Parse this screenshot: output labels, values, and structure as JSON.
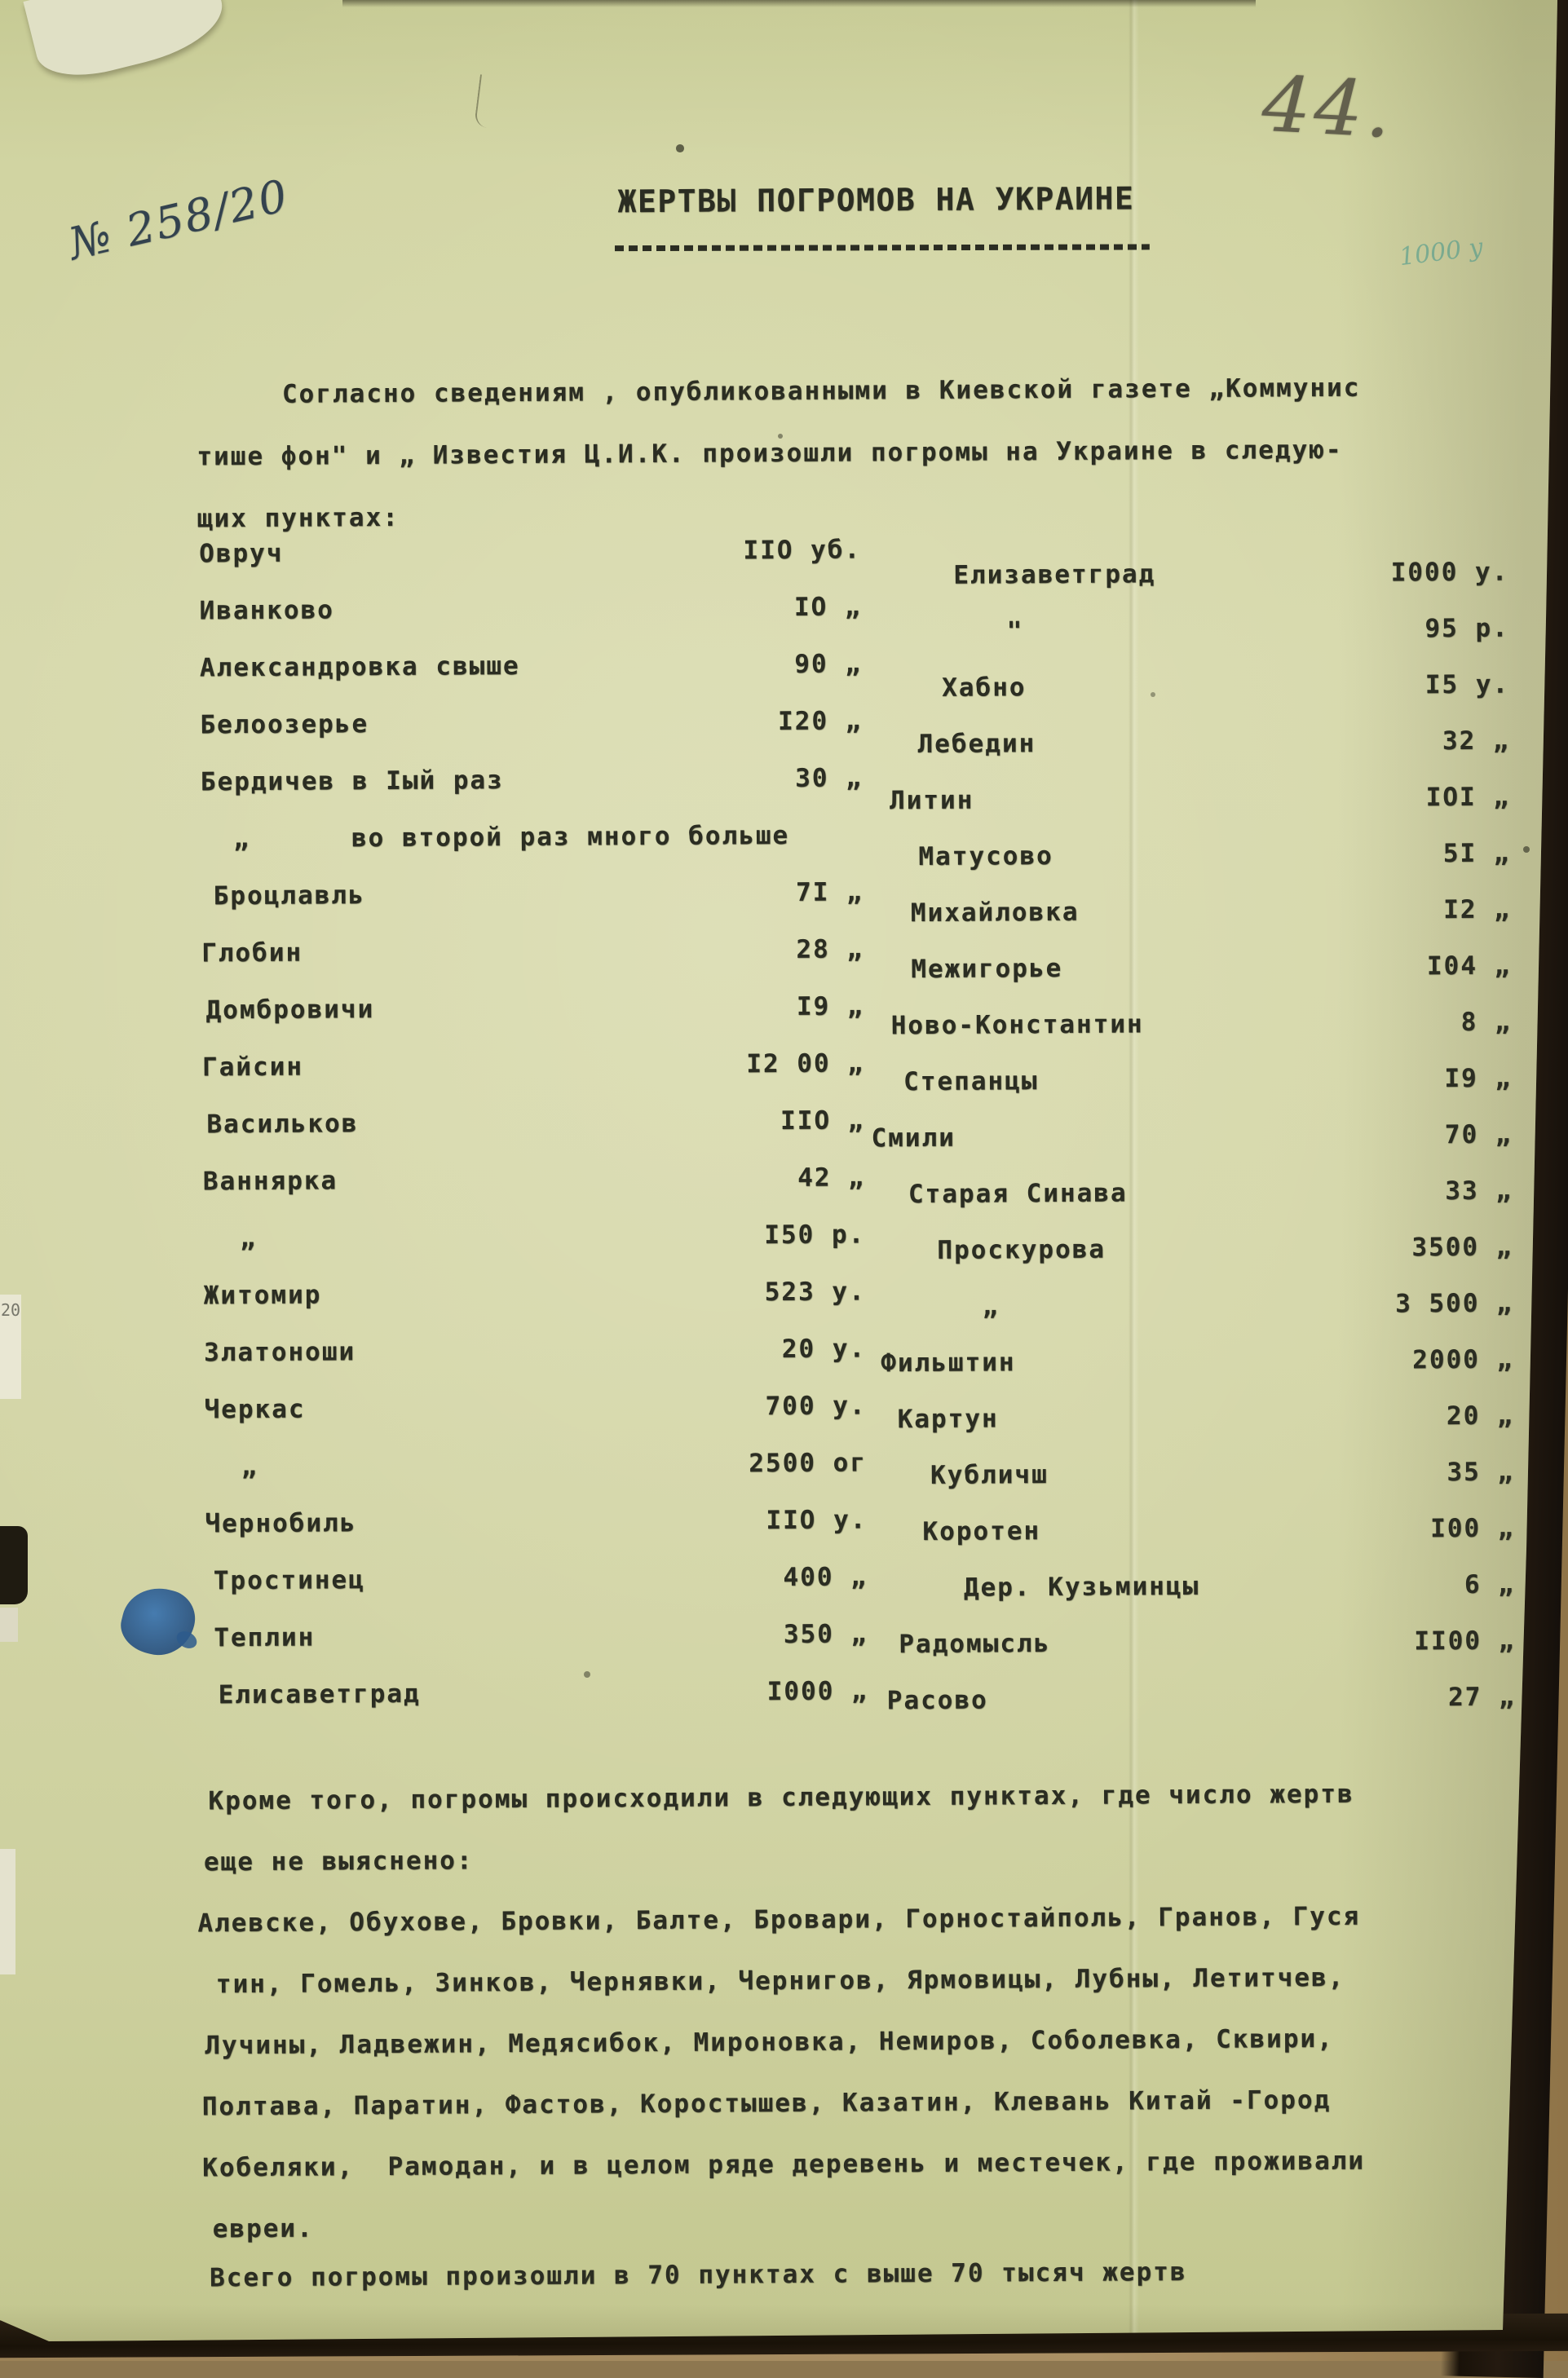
{
  "page": {
    "registry_number": "№ 258/20",
    "archive_page_number": "44.",
    "title": "ЖЕРТВЫ ПОГРОМОВ НА УКРАИНЕ",
    "ghost_mark": "1000 у",
    "edge_tab_text": "20",
    "paper_color": "#d4d6a8",
    "ink_color": "#2b2d22",
    "handwriting_ink_color": "#33424e",
    "pencil_color": "#63604d",
    "ink_blot_color": "#2d5a8c",
    "ghost_ink_color": "#3f948a"
  },
  "intro": {
    "lines": [
      "Согласно сведениям , опубликованными в Киевской газете „Коммунис",
      "тише фон\" и „ Известия Ц.И.К. произошли погромы на Украине в следую-",
      "щих пунктах:"
    ]
  },
  "casualty_table": {
    "left_column": [
      {
        "name": "Овруч",
        "value": "IIO уб.",
        "indent": 0
      },
      {
        "name": "Иванково",
        "value": "IO „",
        "indent": 0
      },
      {
        "name": "Александровка свыше",
        "value": "90 „",
        "indent": 0
      },
      {
        "name": "Белоозерье",
        "value": "I20 „",
        "indent": 0
      },
      {
        "name": "Бердичев в Iый раз",
        "value": "30 „",
        "indent": 0
      },
      {
        "name": "„      во второй раз много больше",
        "value": "",
        "indent": 40
      },
      {
        "name": "Броцлавль",
        "value": "7I „",
        "indent": 15
      },
      {
        "name": "Глобин",
        "value": "28 „",
        "indent": 0
      },
      {
        "name": "Домбровичи",
        "value": "I9 „",
        "indent": 5
      },
      {
        "name": "Гайсин",
        "value": "I2 00 „",
        "indent": 0
      },
      {
        "name": "Васильков",
        "value": "IIO „",
        "indent": 5
      },
      {
        "name": "Ваннярка",
        "value": "42 „",
        "indent": 0
      },
      {
        "name": "„",
        "value": "I50 р.",
        "indent": 45
      },
      {
        "name": "Житомир",
        "value": "523 у.",
        "indent": 0
      },
      {
        "name": "Златоноши",
        "value": "20 у.",
        "indent": 0
      },
      {
        "name": "Черкас",
        "value": "700 у.",
        "indent": 0
      },
      {
        "name": "„",
        "value": "2500 ог",
        "indent": 45
      },
      {
        "name": "Чернобиль",
        "value": "IIO у.",
        "indent": 0
      },
      {
        "name": "Тростинец",
        "value": "400 „",
        "indent": 10
      },
      {
        "name": "Теплин",
        "value": "350 „",
        "indent": 10
      },
      {
        "name": "Елисаветград",
        "value": "I000 „",
        "indent": 15
      }
    ],
    "right_column": [
      {
        "name": "Елизаветград",
        "value": "I000 у.",
        "indent": 105
      },
      {
        "name": "\"",
        "value": "95 р.",
        "indent": 170
      },
      {
        "name": "Хабно",
        "value": "I5 у.",
        "indent": 90
      },
      {
        "name": "Лебедин",
        "value": "32 „",
        "indent": 60
      },
      {
        "name": "Литин",
        "value": "IOI „",
        "indent": 25
      },
      {
        "name": "Матусово",
        "value": "5I „",
        "indent": 60
      },
      {
        "name": "Михайловка",
        "value": "I2 „",
        "indent": 50
      },
      {
        "name": "Межигорье",
        "value": "I04 „",
        "indent": 50
      },
      {
        "name": "Ново-Константин",
        "value": "8 „",
        "indent": 25
      },
      {
        "name": "Степанцы",
        "value": "I9 „",
        "indent": 40
      },
      {
        "name": "Смили",
        "value": "70 „",
        "indent": 0
      },
      {
        "name": "Старая Синава",
        "value": "33 „",
        "indent": 45
      },
      {
        "name": "Проскурова",
        "value": "3500 „",
        "indent": 80
      },
      {
        "name": "„",
        "value": "3 500 „",
        "indent": 135
      },
      {
        "name": "Фильштин",
        "value": "2000 „",
        "indent": 10
      },
      {
        "name": "Картун",
        "value": "20 „",
        "indent": 30
      },
      {
        "name": "Кубличш",
        "value": "35 „",
        "indent": 70
      },
      {
        "name": "Коротен",
        "value": "I00 „",
        "indent": 60
      },
      {
        "name": "Дер. Кузьминцы",
        "value": "6 „",
        "indent": 110
      },
      {
        "name": "Радомысль",
        "value": "II00 „",
        "indent": 30
      },
      {
        "name": "Расово",
        "value": "27 „",
        "indent": 15
      }
    ]
  },
  "additional": {
    "lines": [
      "Кроме того, погромы происходили в следующих пунктах, где число жертв",
      "еще не выяснено:",
      "Алевске, Обухове, Бровки, Балте, Бровари, Горностайполь, Гранов, Гуся",
      "тин, Гомель, Зинков, Чернявки, Чернигов, Ярмовицы, Лубны, Летитчев,",
      "Лучины, Ладвежин, Медясибок, Мироновка, Немиров, Соболевка, Сквири,",
      "Полтава, Паратин, Фастов, Коростышев, Казатин, Клевань Китай -Город",
      "Кобеляки,  Рамодан, и в целом ряде деревень и местечек, где проживали",
      "евреи."
    ]
  },
  "summary": {
    "text": "Всего погромы произошли в 70 пунктах с выше 70 тысяч жертв"
  }
}
